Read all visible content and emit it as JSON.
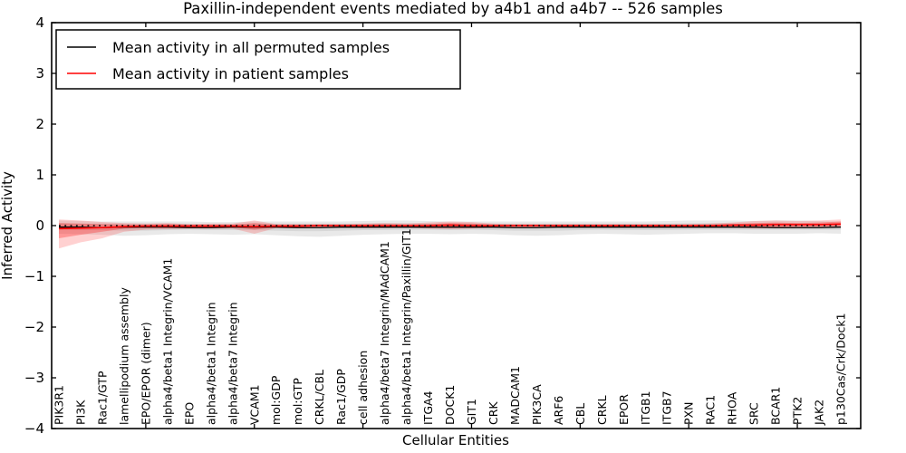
{
  "title": "Paxillin-independent events mediated by a4b1 and a4b7 -- 526 samples",
  "axes": {
    "xlabel": "Cellular Entities",
    "ylabel": "Inferred Activity"
  },
  "legend": {
    "items": [
      {
        "label": "Mean activity in all permuted samples",
        "color": "#000000"
      },
      {
        "label": "Mean activity in patient samples",
        "color": "#ff0000"
      }
    ]
  },
  "colors": {
    "permuted_line": "#000000",
    "patient_line": "#ff0000",
    "permuted_band": "#999999",
    "patient_band": "#ff0000",
    "zero_line": "#000000"
  },
  "chart_data": {
    "type": "line",
    "title": "Paxillin-independent events mediated by a4b1 and a4b7 -- 526 samples",
    "xlabel": "Cellular Entities",
    "ylabel": "Inferred Activity",
    "ylim": [
      -4,
      4
    ],
    "yticks": [
      4,
      3,
      2,
      1,
      0,
      -1,
      -2,
      -3,
      -4
    ],
    "xtick_positions": [
      5,
      10,
      15,
      20,
      25,
      30,
      35
    ],
    "grid": false,
    "legend_position": "upper left",
    "zero_reference_line": 0,
    "categories": [
      "PIK3R1",
      "PI3K",
      "Rac1/GTP",
      "lamellipodium assembly",
      "EPO/EPOR (dimer)",
      "alpha4/beta1 Integrin/VCAM1",
      "EPO",
      "alpha4/beta1 Integrin",
      "alpha4/beta7 Integrin",
      "VCAM1",
      "mol:GDP",
      "mol:GTP",
      "CRKL/CBL",
      "Rac1/GDP",
      "cell adhesion",
      "alpha4/beta7 Integrin/MAdCAM1",
      "alpha4/beta1 Integrin/Paxillin/GIT1",
      "ITGA4",
      "DOCK1",
      "GIT1",
      "CRK",
      "MADCAM1",
      "PIK3CA",
      "ARF6",
      "CBL",
      "CRKL",
      "EPOR",
      "ITGB1",
      "ITGB7",
      "PXN",
      "RAC1",
      "RHOA",
      "SRC",
      "BCAR1",
      "PTK2",
      "JAK2",
      "p130Cas/Crk/Dock1"
    ],
    "series": [
      {
        "name": "Mean activity in all permuted samples",
        "color": "#000000",
        "values": [
          -0.03,
          -0.03,
          -0.04,
          -0.03,
          -0.03,
          -0.03,
          -0.04,
          -0.04,
          -0.03,
          -0.03,
          -0.03,
          -0.04,
          -0.04,
          -0.03,
          -0.03,
          -0.03,
          -0.03,
          -0.03,
          -0.03,
          -0.03,
          -0.03,
          -0.04,
          -0.04,
          -0.03,
          -0.03,
          -0.03,
          -0.03,
          -0.03,
          -0.03,
          -0.03,
          -0.03,
          -0.03,
          -0.03,
          -0.04,
          -0.04,
          -0.04,
          -0.03
        ]
      },
      {
        "name": "Mean activity in patient samples",
        "color": "#ff0000",
        "values": [
          -0.06,
          -0.05,
          -0.04,
          -0.02,
          -0.01,
          -0.01,
          -0.01,
          -0.01,
          -0.01,
          -0.02,
          -0.01,
          -0.01,
          0,
          0,
          0,
          0,
          0,
          0,
          0.01,
          0,
          0,
          0,
          0,
          0,
          0,
          0,
          0,
          0,
          0,
          0,
          0,
          0.01,
          0.01,
          0.02,
          0.02,
          0.02,
          0.03
        ]
      }
    ],
    "bands": [
      {
        "name": "permuted-envelope-outer",
        "color": "#999999",
        "opacity": 0.22,
        "upper": [
          0.1,
          0.09,
          0.08,
          0.08,
          0.08,
          0.08,
          0.08,
          0.07,
          0.07,
          0.08,
          0.08,
          0.08,
          0.08,
          0.08,
          0.09,
          0.1,
          0.1,
          0.09,
          0.08,
          0.08,
          0.08,
          0.08,
          0.08,
          0.08,
          0.08,
          0.08,
          0.08,
          0.08,
          0.09,
          0.1,
          0.1,
          0.1,
          0.09,
          0.1,
          0.1,
          0.09,
          0.08
        ],
        "lower": [
          -0.16,
          -0.17,
          -0.18,
          -0.2,
          -0.19,
          -0.17,
          -0.16,
          -0.17,
          -0.18,
          -0.17,
          -0.19,
          -0.21,
          -0.22,
          -0.2,
          -0.18,
          -0.17,
          -0.16,
          -0.16,
          -0.17,
          -0.16,
          -0.17,
          -0.19,
          -0.2,
          -0.19,
          -0.17,
          -0.16,
          -0.17,
          -0.18,
          -0.17,
          -0.16,
          -0.15,
          -0.15,
          -0.16,
          -0.16,
          -0.16,
          -0.15,
          -0.16
        ]
      },
      {
        "name": "permuted-envelope-inner",
        "color": "#999999",
        "opacity": 0.22,
        "upper": [
          0.05,
          0.04,
          0.04,
          0.04,
          0.04,
          0.04,
          0.04,
          0.03,
          0.03,
          0.04,
          0.04,
          0.04,
          0.04,
          0.04,
          0.04,
          0.05,
          0.05,
          0.04,
          0.04,
          0.04,
          0.04,
          0.04,
          0.04,
          0.04,
          0.04,
          0.04,
          0.04,
          0.04,
          0.04,
          0.05,
          0.05,
          0.05,
          0.04,
          0.05,
          0.05,
          0.04,
          0.04
        ],
        "lower": [
          -0.08,
          -0.09,
          -0.09,
          -0.1,
          -0.1,
          -0.09,
          -0.08,
          -0.09,
          -0.09,
          -0.09,
          -0.1,
          -0.11,
          -0.11,
          -0.1,
          -0.09,
          -0.09,
          -0.08,
          -0.08,
          -0.09,
          -0.08,
          -0.09,
          -0.1,
          -0.1,
          -0.1,
          -0.09,
          -0.08,
          -0.09,
          -0.09,
          -0.09,
          -0.08,
          -0.08,
          -0.08,
          -0.08,
          -0.08,
          -0.08,
          -0.08,
          -0.08
        ]
      },
      {
        "name": "patient-envelope-outer",
        "color": "#ff0000",
        "opacity": 0.18,
        "upper": [
          0.12,
          0.1,
          0.07,
          0.05,
          0.04,
          0.05,
          0.03,
          0.04,
          0.04,
          0.1,
          0.03,
          0.03,
          0.03,
          0.03,
          0.04,
          0.05,
          0.04,
          0.06,
          0.08,
          0.07,
          0.04,
          0.03,
          0.03,
          0.03,
          0.03,
          0.03,
          0.03,
          0.03,
          0.03,
          0.03,
          0.04,
          0.06,
          0.09,
          0.1,
          0.09,
          0.1,
          0.12
        ],
        "lower": [
          -0.45,
          -0.33,
          -0.25,
          -0.12,
          -0.08,
          -0.07,
          -0.06,
          -0.06,
          -0.06,
          -0.16,
          -0.05,
          -0.05,
          -0.04,
          -0.04,
          -0.05,
          -0.05,
          -0.04,
          -0.06,
          -0.07,
          -0.06,
          -0.04,
          -0.04,
          -0.04,
          -0.03,
          -0.03,
          -0.03,
          -0.03,
          -0.03,
          -0.03,
          -0.03,
          -0.03,
          -0.04,
          -0.06,
          -0.05,
          -0.04,
          -0.03,
          -0.02
        ]
      },
      {
        "name": "patient-envelope-inner",
        "color": "#ff0000",
        "opacity": 0.28,
        "upper": [
          0.05,
          0.04,
          0.03,
          0.02,
          0.02,
          0.03,
          0.02,
          0.02,
          0.02,
          0.05,
          0.02,
          0.02,
          0.02,
          0.02,
          0.02,
          0.03,
          0.02,
          0.03,
          0.05,
          0.04,
          0.02,
          0.02,
          0.02,
          0.02,
          0.02,
          0.02,
          0.02,
          0.02,
          0.02,
          0.02,
          0.02,
          0.03,
          0.05,
          0.06,
          0.05,
          0.06,
          0.08
        ],
        "lower": [
          -0.25,
          -0.18,
          -0.12,
          -0.06,
          -0.04,
          -0.04,
          -0.03,
          -0.03,
          -0.03,
          -0.08,
          -0.03,
          -0.03,
          -0.02,
          -0.02,
          -0.03,
          -0.03,
          -0.02,
          -0.03,
          -0.04,
          -0.03,
          -0.02,
          -0.02,
          -0.02,
          -0.02,
          -0.02,
          -0.02,
          -0.02,
          -0.02,
          -0.02,
          -0.02,
          -0.02,
          -0.02,
          -0.03,
          -0.03,
          -0.02,
          -0.02,
          -0.01
        ]
      }
    ]
  }
}
